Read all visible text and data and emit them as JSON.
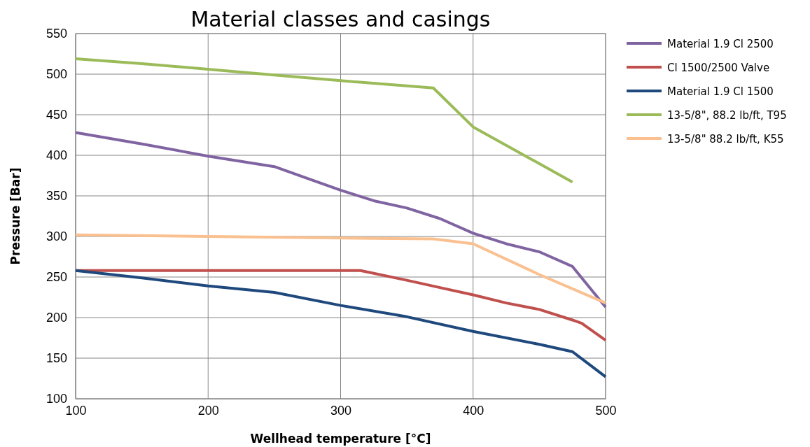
{
  "chart_data": {
    "type": "line",
    "title": "Material classes and casings",
    "xlabel": "Wellhead temperature [°C]",
    "ylabel": "Pressure [Bar]",
    "xlim": [
      100,
      500
    ],
    "xticks": [
      100,
      200,
      300,
      400,
      500
    ],
    "ylim": [
      100,
      550
    ],
    "yticks": [
      100,
      150,
      200,
      250,
      300,
      350,
      400,
      450,
      500,
      550
    ],
    "grid": true,
    "legend": "right",
    "marker": "none",
    "line_style": "solid",
    "series": [
      {
        "name": "Material 1.9 Cl 2500",
        "color": "#8064a2",
        "x": [
          100,
          150,
          200,
          250,
          300,
          325,
          350,
          375,
          400,
          425,
          450,
          475,
          500
        ],
        "values": [
          428,
          414,
          399,
          386,
          357,
          344,
          335,
          322,
          304,
          291,
          281,
          263,
          213
        ]
      },
      {
        "name": "Cl 1500/2500 Valve",
        "color": "#c0504d",
        "x": [
          100,
          315,
          350,
          375,
          400,
          425,
          450,
          475,
          482,
          500
        ],
        "values": [
          258,
          258,
          246,
          237,
          228,
          218,
          210,
          197,
          193,
          172
        ]
      },
      {
        "name": "Material 1.9 Cl 1500",
        "color": "#1f497d",
        "x": [
          100,
          150,
          200,
          250,
          300,
          350,
          400,
          450,
          475,
          500
        ],
        "values": [
          258,
          249,
          239,
          231,
          215,
          201,
          183,
          167,
          158,
          127
        ]
      },
      {
        "name": "13-5/8\", 88.2 lb/ft, T95",
        "color": "#9bbb59",
        "x": [
          100,
          150,
          200,
          250,
          300,
          370,
          400,
          475
        ],
        "values": [
          519,
          513,
          506,
          499,
          492,
          483,
          435,
          367
        ]
      },
      {
        "name": "13-5/8\" 88.2 lb/ft, K55",
        "color": "#fac090",
        "x": [
          100,
          200,
          300,
          370,
          400,
          450,
          500
        ],
        "values": [
          302,
          300,
          298,
          297,
          291,
          253,
          218
        ]
      }
    ]
  }
}
